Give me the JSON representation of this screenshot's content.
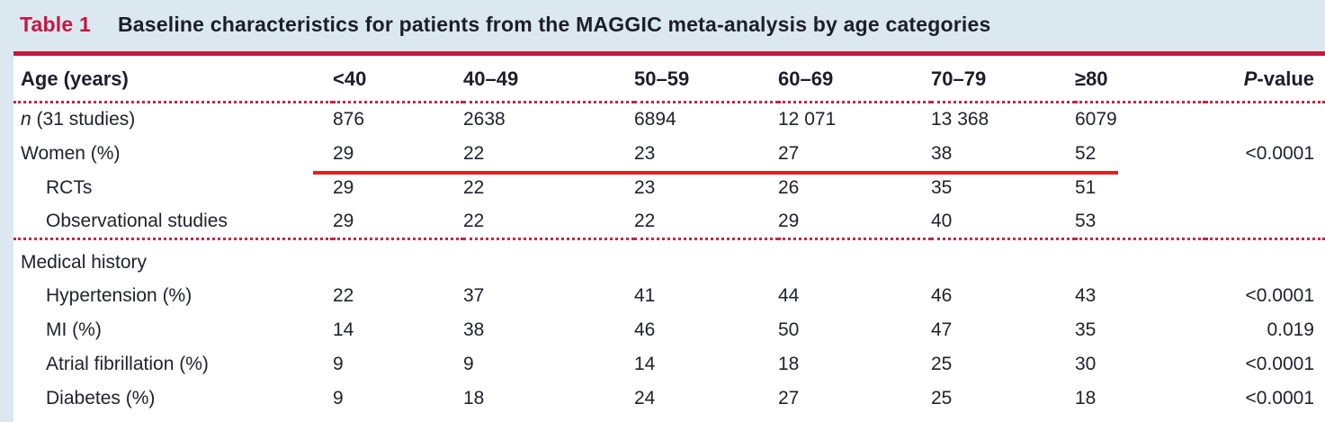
{
  "title": {
    "label": "Table 1",
    "text": "Baseline characteristics for patients from the MAGGIC meta-analysis by age categories"
  },
  "table": {
    "header": {
      "row_label": "Age (years)",
      "columns": [
        "<40",
        "40–49",
        "50–59",
        "60–69",
        "70–79",
        "≥80"
      ],
      "pvalue_italic": "P",
      "pvalue_rest": "-value"
    },
    "rows": [
      {
        "label_italic": "n",
        "label": " (31 studies)",
        "indent": 0,
        "values": [
          "876",
          "2638",
          "6894",
          "12 071",
          "13 368",
          "6079"
        ],
        "pvalue": ""
      },
      {
        "label": "Women (%)",
        "indent": 0,
        "values": [
          "29",
          "22",
          "23",
          "27",
          "38",
          "52"
        ],
        "pvalue": "<0.0001",
        "annotation": "red-underline"
      },
      {
        "label": "RCTs",
        "indent": 1,
        "values": [
          "29",
          "22",
          "23",
          "26",
          "35",
          "51"
        ],
        "pvalue": ""
      },
      {
        "label": "Observational studies",
        "indent": 1,
        "section_end": true,
        "values": [
          "29",
          "22",
          "22",
          "29",
          "40",
          "53"
        ],
        "pvalue": ""
      },
      {
        "label": "Medical history",
        "indent": 0,
        "section": true,
        "values": [
          "",
          "",
          "",
          "",
          "",
          ""
        ],
        "pvalue": ""
      },
      {
        "label": "Hypertension (%)",
        "indent": 1,
        "values": [
          "22",
          "37",
          "41",
          "44",
          "46",
          "43"
        ],
        "pvalue": "<0.0001"
      },
      {
        "label": "MI (%)",
        "indent": 1,
        "values": [
          "14",
          "38",
          "46",
          "50",
          "47",
          "35"
        ],
        "pvalue": "0.019"
      },
      {
        "label": "Atrial fibrillation (%)",
        "indent": 1,
        "values": [
          "9",
          "9",
          "14",
          "18",
          "25",
          "30"
        ],
        "pvalue": "<0.0001"
      },
      {
        "label": "Diabetes (%)",
        "indent": 1,
        "values": [
          "9",
          "18",
          "24",
          "27",
          "25",
          "18"
        ],
        "pvalue": "<0.0001"
      }
    ]
  },
  "annotation": {
    "type": "red-underline",
    "target_row": "Women (%)",
    "spans_columns": "<40 through ≥80"
  },
  "colors": {
    "page_background": "#dbe8f0",
    "table_background": "#ffffff",
    "accent_crimson": "#c4173f",
    "dotted_rule": "#c02848",
    "annotation_red": "#e32020",
    "text": "#20222e"
  }
}
